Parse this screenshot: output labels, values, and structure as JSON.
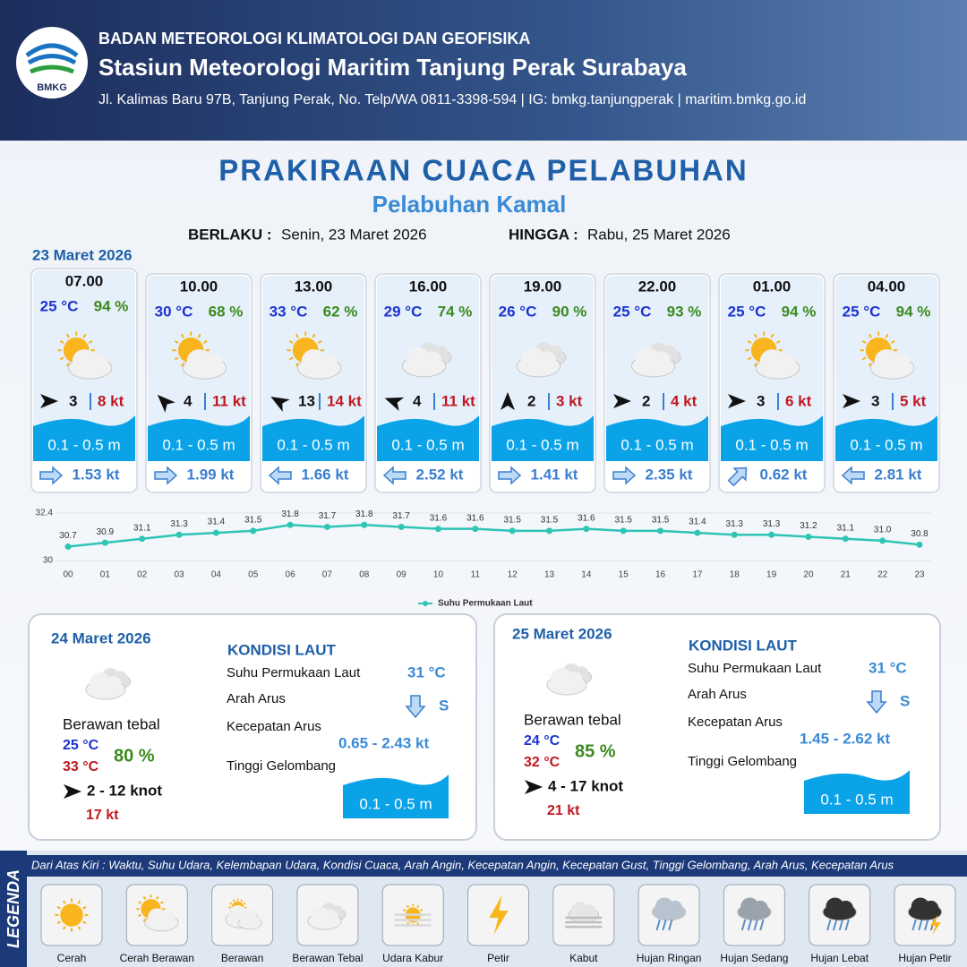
{
  "header": {
    "logo": "BMKG",
    "organization": "BADAN METEOROLOGI KLIMATOLOGI DAN GEOFISIKA",
    "station": "Stasiun Meteorologi Maritim Tanjung Perak Surabaya",
    "address": "Jl. Kalimas Baru 97B, Tanjung Perak, No. Telp/WA 0811-3398-594 | IG: bmkg.tanjungperak | maritim.bmkg.go.id"
  },
  "title": "PRAKIRAAN CUACA PELABUHAN",
  "subtitle": "Pelabuhan Kamal",
  "validity": {
    "from_label": "BERLAKU :",
    "from": "Senin, 23 Maret 2026",
    "to_label": "HINGGA :",
    "to": "Rabu, 25 Maret 2026"
  },
  "forecast": {
    "date": "23 Maret 2026",
    "cards": [
      {
        "time": "07.00",
        "temperature": "25 °C",
        "humidity": "94 %",
        "wind_speed": 3,
        "gust": "8 kt",
        "wave": "0.1 - 0.5 m",
        "current": "1.53 kt"
      },
      {
        "time": "10.00",
        "temperature": "30 °C",
        "humidity": "68 %",
        "wind_speed": 4,
        "gust": "11 kt",
        "wave": "0.1 - 0.5 m",
        "current": "1.99 kt"
      },
      {
        "time": "13.00",
        "temperature": "33 °C",
        "humidity": "62 %",
        "wind_speed": 13,
        "gust": "14 kt",
        "wave": "0.1 - 0.5 m",
        "current": "1.66 kt"
      },
      {
        "time": "16.00",
        "temperature": "29 °C",
        "humidity": "74 %",
        "wind_speed": 4,
        "gust": "11 kt",
        "wave": "0.1 - 0.5 m",
        "current": "2.52 kt"
      },
      {
        "time": "19.00",
        "temperature": "26 °C",
        "humidity": "90 %",
        "wind_speed": 2,
        "gust": "3 kt",
        "wave": "0.1 - 0.5 m",
        "current": "1.41 kt"
      },
      {
        "time": "22.00",
        "temperature": "25 °C",
        "humidity": "93 %",
        "wind_speed": 2,
        "gust": "4 kt",
        "wave": "0.1 - 0.5 m",
        "current": "2.35 kt"
      },
      {
        "time": "01.00",
        "temperature": "25 °C",
        "humidity": "94 %",
        "wind_speed": 3,
        "gust": "6 kt",
        "wave": "0.1 - 0.5 m",
        "current": "0.62 kt"
      },
      {
        "time": "04.00",
        "temperature": "25 °C",
        "humidity": "94 %",
        "wind_speed": 3,
        "gust": "5 kt",
        "wave": "0.1 - 0.5 m",
        "current": "2.81 kt"
      }
    ]
  },
  "chart_data": {
    "type": "line",
    "categories": [
      "00",
      "01",
      "02",
      "03",
      "04",
      "05",
      "06",
      "07",
      "08",
      "09",
      "10",
      "11",
      "12",
      "13",
      "14",
      "15",
      "16",
      "17",
      "18",
      "19",
      "20",
      "21",
      "22",
      "23"
    ],
    "series": [
      {
        "name": "Suhu Permukaan Laut",
        "color": "#2ec4b6",
        "values": [
          30.7,
          30.9,
          31.1,
          31.3,
          31.4,
          31.5,
          31.8,
          31.7,
          31.8,
          31.7,
          31.6,
          31.6,
          31.5,
          31.5,
          31.6,
          31.5,
          31.5,
          31.4,
          31.3,
          31.3,
          31.2,
          31.1,
          31.0,
          30.8
        ],
        "value_labels": [
          "30.7",
          "30.9",
          "31.1",
          "31.3",
          "31.4",
          "31.5",
          "31.8",
          "31.7",
          "31.8",
          "31.7",
          "31.6",
          "31.6",
          "31.5",
          "31.5",
          "31.6",
          "31.5",
          "31.5",
          "31.4",
          "31.3",
          "31.3",
          "31.2",
          "31.1",
          "31.0",
          "30.8"
        ]
      }
    ],
    "ylim": [
      30,
      32.4
    ],
    "yticks": [
      30,
      32.4
    ],
    "legend": "bottom"
  },
  "days": [
    {
      "date": "24 Maret 2026",
      "condition": "Berawan tebal",
      "temp_min": "25 °C",
      "temp_max": "33 °C",
      "humidity": "80 %",
      "wind": "2  - 12 knot",
      "gust": "17 kt",
      "sea_title": "KONDISI LAUT",
      "sst_label": "Suhu Permukaan Laut",
      "sst": "31 °C",
      "direction_label": "Arah Arus",
      "direction": "S",
      "speed_label": "Kecepatan Arus",
      "speed": "0.65  - 2.43 kt",
      "wave_label": "Tinggi Gelombang",
      "wave": "0.1 - 0.5 m"
    },
    {
      "date": "25 Maret 2026",
      "condition": "Berawan tebal",
      "temp_min": "24 °C",
      "temp_max": "32 °C",
      "humidity": "85 %",
      "wind": "4  - 17 knot",
      "gust": "21 kt",
      "sea_title": "KONDISI LAUT",
      "sst_label": "Suhu Permukaan Laut",
      "sst": "31 °C",
      "direction_label": "Arah Arus",
      "direction": "S",
      "speed_label": "Kecepatan Arus",
      "speed": "1.45  - 2.62 kt",
      "wave_label": "Tinggi Gelombang",
      "wave": "0.1 - 0.5 m"
    }
  ],
  "legend": {
    "title": "LEGENDA",
    "description": "Dari Atas Kiri : Waktu, Suhu Udara, Kelembapan Udara, Kondisi Cuaca, Arah Angin, Kecepatan Angin, Kecepatan Gust, Tinggi Gelombang, Arah Arus, Kecepatan Arus",
    "items": [
      "Cerah",
      "Cerah Berawan",
      "Berawan",
      "Berawan Tebal",
      "Udara Kabur",
      "Petir",
      "Kabut",
      "Hujan Ringan",
      "Hujan Sedang",
      "Hujan Lebat",
      "Hujan Petir"
    ]
  }
}
